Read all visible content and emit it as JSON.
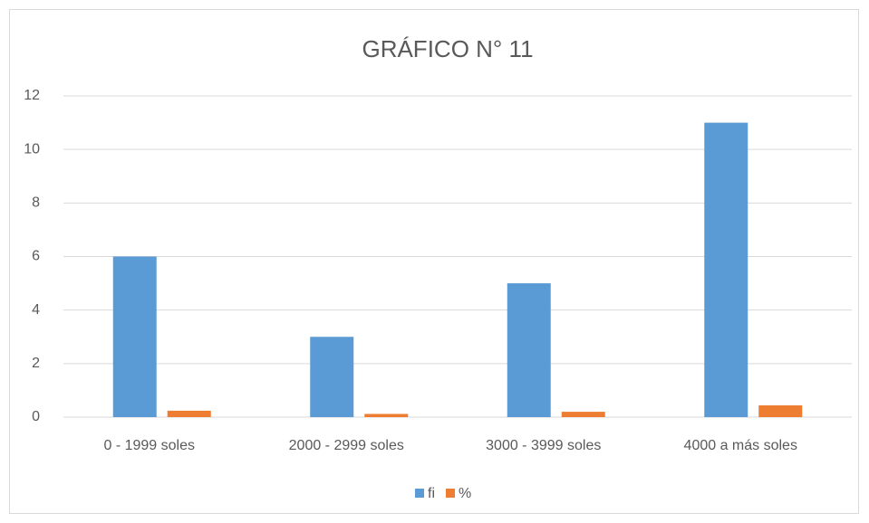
{
  "chart_data": {
    "type": "bar",
    "title": "GRÁFICO N° 11",
    "categories": [
      "0 - 1999 soles",
      "2000 - 2999 soles",
      "3000 - 3999 soles",
      "4000 a más soles"
    ],
    "series": [
      {
        "name": "fi",
        "color": "#5b9bd5",
        "values": [
          6,
          3,
          5,
          11
        ]
      },
      {
        "name": "%",
        "color": "#ed7d31",
        "values": [
          0.24,
          0.12,
          0.2,
          0.44
        ]
      }
    ],
    "ylim": [
      0,
      12
    ],
    "yticks": [
      0,
      2,
      4,
      6,
      8,
      10,
      12
    ],
    "grid": true,
    "legend": "bottom"
  }
}
